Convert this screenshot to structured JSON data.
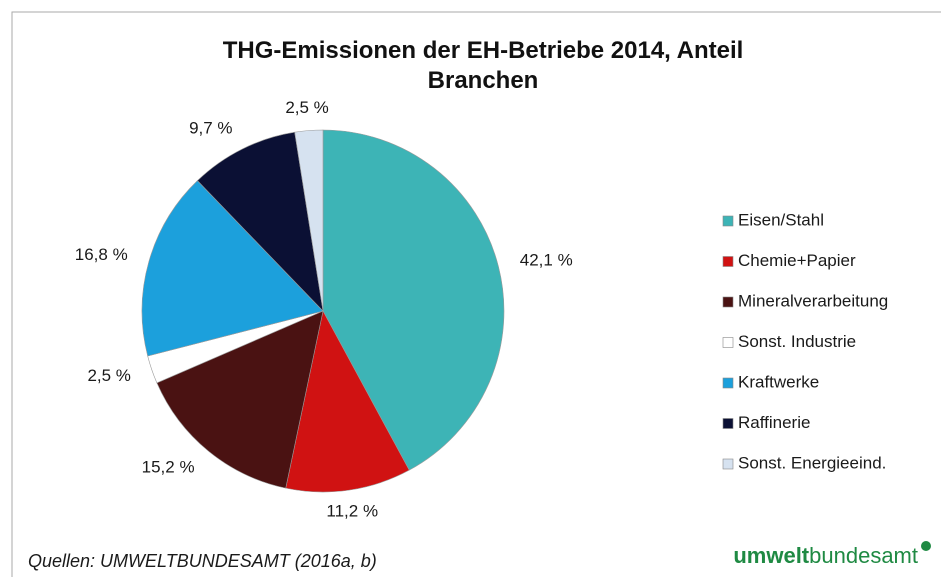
{
  "chart_data": {
    "type": "pie",
    "title": "THG-Emissionen der EH-Betriebe 2014, Anteil Branchen",
    "categories": [
      "Eisen/Stahl",
      "Chemie+Papier",
      "Mineralverarbeitung",
      "Sonst. Industrie",
      "Kraftwerke",
      "Raffinerie",
      "Sonst. Energieeind."
    ],
    "values": [
      42.1,
      11.2,
      15.2,
      2.5,
      16.8,
      9.7,
      2.5
    ],
    "value_labels": [
      "42,1 %",
      "11,2 %",
      "15,2 %",
      "2,5 %",
      "16,8 %",
      "9,7 %",
      "2,5 %"
    ],
    "colors": [
      "#3db4b6",
      "#d01212",
      "#4a1212",
      "#ffffff",
      "#1ca0dc",
      "#0b1034",
      "#d6e2f0"
    ],
    "legend": "right"
  },
  "footer": {
    "source": "Quellen: UMWELTBUNDESAMT (2016a, b)",
    "logo_bold": "umwelt",
    "logo_rest": "bundesamt"
  }
}
